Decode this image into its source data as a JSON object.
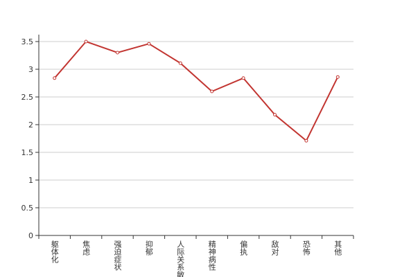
{
  "chart_data": {
    "type": "line",
    "categories": [
      "躯体化",
      "焦虑",
      "强迫症状",
      "抑郁",
      "人际关系敏感",
      "精神病性",
      "偏执",
      "敌对",
      "恐怖",
      "其他"
    ],
    "values": [
      2.84,
      3.5,
      3.3,
      3.46,
      3.11,
      2.6,
      2.84,
      2.18,
      1.71,
      2.86
    ],
    "color": "#c23531",
    "ylim": [
      0,
      3.5
    ],
    "yticks": [
      0,
      0.5,
      1,
      1.5,
      2,
      2.5,
      3,
      3.5
    ],
    "grid": true
  }
}
